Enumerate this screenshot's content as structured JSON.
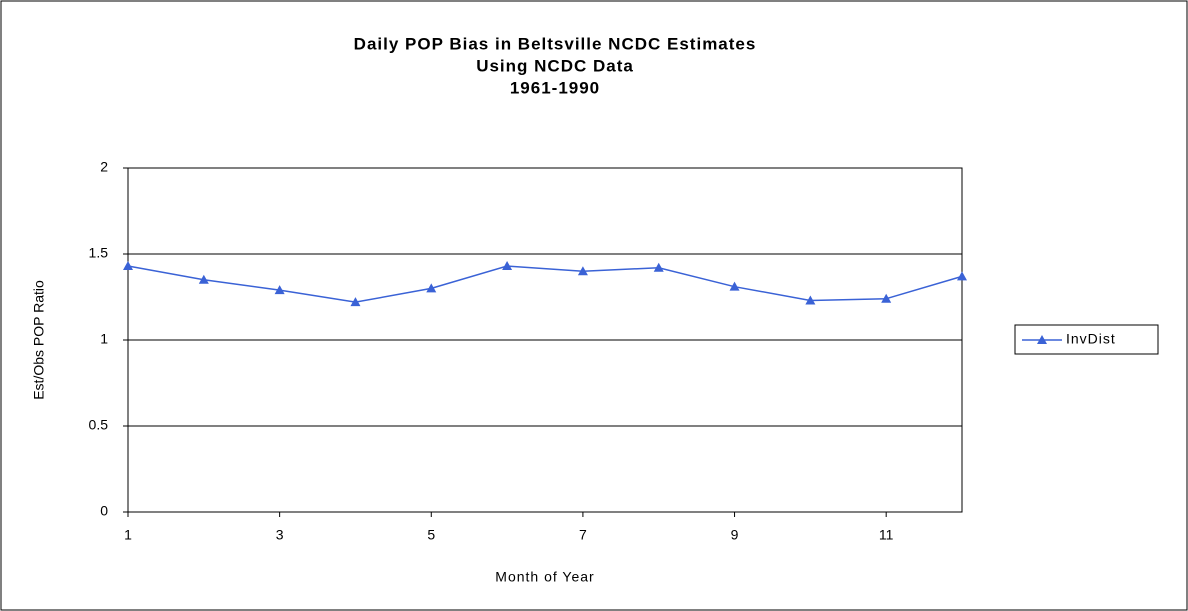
{
  "chart_data": {
    "type": "line",
    "title": [
      "Daily POP Bias in Beltsville NCDC Estimates",
      "Using NCDC Data",
      "1961-1990"
    ],
    "x_label": "Month of Year",
    "y_label": "Est/Obs POP Ratio",
    "x": [
      1,
      2,
      3,
      4,
      5,
      6,
      7,
      8,
      9,
      10,
      11,
      12
    ],
    "series": [
      {
        "name": "InvDist",
        "color": "#3a62d6",
        "values": [
          1.43,
          1.35,
          1.29,
          1.22,
          1.3,
          1.43,
          1.4,
          1.42,
          1.31,
          1.23,
          1.24,
          1.37
        ]
      }
    ],
    "xlim": [
      1,
      12
    ],
    "xticks": [
      1,
      3,
      5,
      7,
      9,
      11
    ],
    "ylim": [
      0,
      2
    ],
    "yticks": [
      0,
      0.5,
      1,
      1.5,
      2
    ],
    "grid": true,
    "legend": "right"
  }
}
